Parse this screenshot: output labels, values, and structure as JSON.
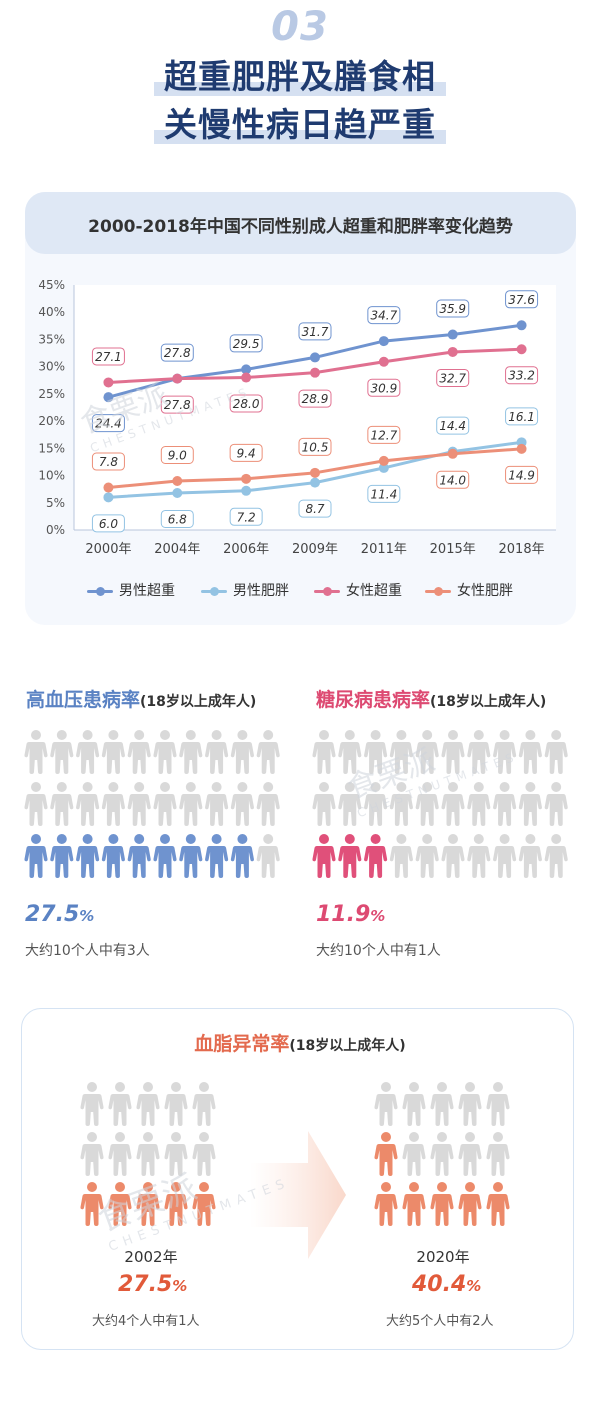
{
  "header": {
    "section_number": "03",
    "title_line1": "超重肥胖及膳食相",
    "title_line2": "关慢性病日趋严重"
  },
  "chart_data": {
    "type": "line",
    "title": "2000-2018年中国不同性别成人超重和肥胖率变化趋势",
    "x": [
      "2000年",
      "2004年",
      "2006年",
      "2009年",
      "2011年",
      "2015年",
      "2018年"
    ],
    "yticks": [
      "0%",
      "5%",
      "10%",
      "15%",
      "20%",
      "25%",
      "30%",
      "35%",
      "40%",
      "45%"
    ],
    "ylim": [
      0,
      45
    ],
    "grid": false,
    "legend_position": "bottom",
    "series": [
      {
        "name": "男性超重",
        "color": "#6f93cf",
        "values": [
          24.4,
          27.8,
          29.5,
          31.7,
          34.7,
          35.9,
          37.6
        ]
      },
      {
        "name": "男性肥胖",
        "color": "#93c3e3",
        "values": [
          6.0,
          6.8,
          7.2,
          8.7,
          11.4,
          14.4,
          16.1
        ]
      },
      {
        "name": "女性超重",
        "color": "#e07090",
        "values": [
          27.1,
          27.8,
          28.0,
          28.9,
          30.9,
          32.7,
          33.2
        ]
      },
      {
        "name": "女性肥胖",
        "color": "#ec8f78",
        "values": [
          7.8,
          9.0,
          9.4,
          10.5,
          12.7,
          14.0,
          14.9
        ]
      }
    ]
  },
  "hypertension": {
    "title": "高血压患病率",
    "subtitle": "(18岁以上成年人)",
    "value": "27.5",
    "suffix": "%",
    "note": "大约10个人中有3人",
    "highlight": 9,
    "total": 30,
    "color": "#6f93cf"
  },
  "diabetes": {
    "title": "糖尿病患病率",
    "subtitle": "(18岁以上成年人)",
    "value": "11.9",
    "suffix": "%",
    "note": "大约10个人中有1人",
    "highlight": 3,
    "total": 30,
    "color": "#e0507a"
  },
  "lipid": {
    "title": "血脂异常率",
    "subtitle": "(18岁以上成年人)",
    "color": "#ec8a6a",
    "year_a": "2002年",
    "value_a": "27.5",
    "note_a": "大约4个人中有1人",
    "year_b": "2020年",
    "value_b": "40.4",
    "note_b": "大约5个人中有2人",
    "suffix": "%",
    "highlight_a": 5,
    "highlight_b": 6,
    "total": 15
  },
  "watermark": {
    "brand_cn": "食栗派",
    "brand_en": "CHESTNUTMATES"
  }
}
